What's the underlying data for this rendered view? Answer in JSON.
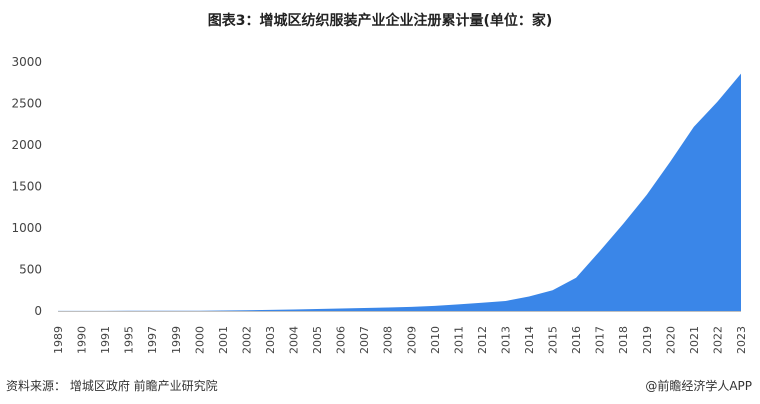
{
  "title": "图表3：增城区纺织服装产业企业注册累计量(单位：家)",
  "footer": {
    "source": "资料来源：  增城区政府 前瞻产业研究院",
    "brand": "@前瞻经济学人APP"
  },
  "colors": {
    "area": "#3a86e8",
    "axis": "#bfbfbf"
  },
  "chart_data": {
    "type": "area",
    "title": "图表3：增城区纺织服装产业企业注册累计量(单位：家)",
    "xlabel": "",
    "ylabel": "",
    "ylim": [
      0,
      3000
    ],
    "yticks": [
      0,
      500,
      1000,
      1500,
      2000,
      2500,
      3000
    ],
    "grid": false,
    "categories": [
      "1989",
      "1990",
      "1991",
      "1995",
      "1997",
      "1999",
      "2000",
      "2001",
      "2002",
      "2003",
      "2004",
      "2005",
      "2006",
      "2007",
      "2008",
      "2009",
      "2010",
      "2011",
      "2012",
      "2013",
      "2014",
      "2015",
      "2016",
      "2017",
      "2018",
      "2019",
      "2020",
      "2021",
      "2022",
      "2023"
    ],
    "series": [
      {
        "values": [
          1,
          1,
          1,
          2,
          2,
          3,
          4,
          6,
          9,
          13,
          18,
          24,
          30,
          36,
          42,
          50,
          62,
          80,
          100,
          120,
          175,
          250,
          400,
          720,
          1050,
          1400,
          1800,
          2220,
          2520,
          2860
        ]
      }
    ]
  }
}
